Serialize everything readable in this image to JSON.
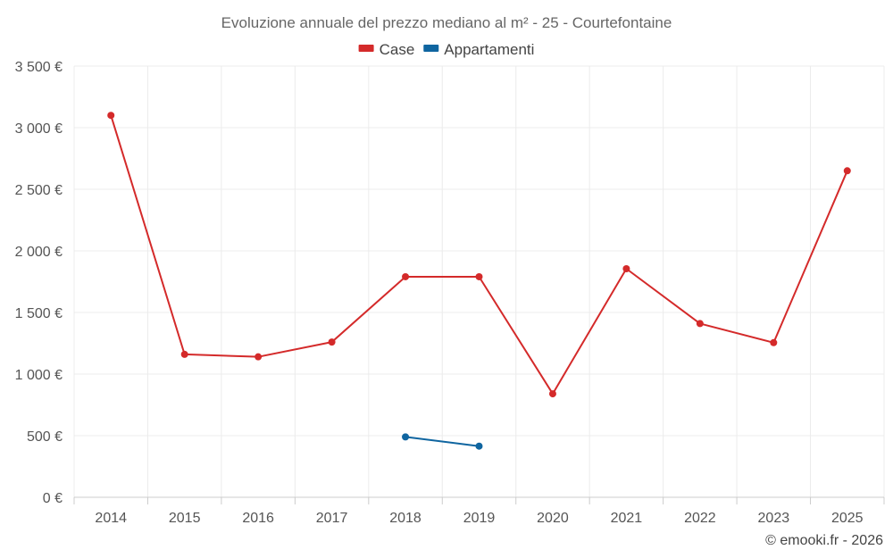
{
  "chart_data": {
    "type": "line",
    "title": "Evoluzione annuale del prezzo mediano al m² - 25 - Courtefontaine",
    "categories": [
      "2014",
      "2015",
      "2016",
      "2017",
      "2018",
      "2019",
      "2020",
      "2021",
      "2022",
      "2023",
      "2025"
    ],
    "series": [
      {
        "name": "Case",
        "color": "#d42a2a",
        "values": [
          3100,
          1160,
          1140,
          1260,
          1790,
          1790,
          840,
          1855,
          1410,
          1255,
          2650
        ]
      },
      {
        "name": "Appartamenti",
        "color": "#0f65a0",
        "values": [
          null,
          null,
          null,
          null,
          490,
          415,
          null,
          null,
          null,
          null,
          null
        ]
      }
    ],
    "ylim": [
      0,
      3500
    ],
    "yticks": [
      0,
      500,
      1000,
      1500,
      2000,
      2500,
      3000,
      3500
    ],
    "ytick_labels": [
      "0 €",
      "500 €",
      "1 000 €",
      "1 500 €",
      "2 000 €",
      "2 500 €",
      "3 000 €",
      "3 500 €"
    ],
    "xlabel": "",
    "ylabel": "",
    "legend_position": "top-center",
    "grid": true
  },
  "credit": "© emooki.fr - 2026"
}
